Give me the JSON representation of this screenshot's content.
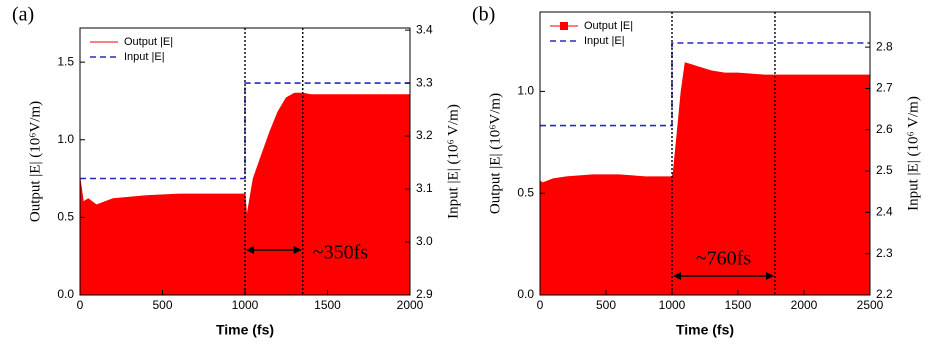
{
  "chart_data": [
    {
      "type": "line",
      "panel_label": "(a)",
      "xlabel": "Time (fs)",
      "ylabel": "Output |E| (10⁶V/m)",
      "y2label": "Input |E| (10⁶ V/m)",
      "xlim": [
        0,
        2000
      ],
      "xticks": [
        0,
        500,
        1000,
        1500,
        2000
      ],
      "ylim": [
        0,
        1.72
      ],
      "yticks": [
        {
          "value": 0,
          "label": "0.0"
        },
        0.5,
        {
          "value": 1,
          "label": "1.0"
        },
        1.5
      ],
      "y2lim": [
        2.9,
        3.404
      ],
      "y2ticks": [
        2.9,
        {
          "value": 3,
          "label": "3.0"
        },
        3.1,
        3.2,
        3.3,
        3.4
      ],
      "series": [
        {
          "name": "Output |E|",
          "color": "#ff0000",
          "kind": "area",
          "x": [
            0,
            20,
            50,
            100,
            200,
            400,
            600,
            800,
            1000,
            1010,
            1050,
            1100,
            1150,
            1200,
            1250,
            1300,
            1350,
            1400,
            1600,
            1800,
            2000
          ],
          "values": [
            0.75,
            0.6,
            0.62,
            0.58,
            0.62,
            0.64,
            0.65,
            0.65,
            0.65,
            0.5,
            0.75,
            0.9,
            1.05,
            1.18,
            1.27,
            1.3,
            1.3,
            1.29,
            1.29,
            1.29,
            1.29
          ]
        },
        {
          "name": "Input |E|",
          "color": "#2828c8",
          "kind": "dashed",
          "axis": "y2",
          "x": [
            0,
            1000,
            1000,
            2000
          ],
          "values": [
            3.12,
            3.12,
            3.3,
            3.3
          ]
        }
      ],
      "vlines": [
        1000,
        1350
      ],
      "annotation": "~350fs"
    },
    {
      "type": "line",
      "panel_label": "(b)",
      "xlabel": "Time (fs)",
      "ylabel": "Output |E| (10⁶V/m)",
      "y2label": "Input |E| (10⁶ V/m)",
      "xlim": [
        0,
        2500
      ],
      "xticks": [
        0,
        500,
        1000,
        1500,
        2000,
        2500
      ],
      "ylim": [
        0,
        1.39
      ],
      "yticks": [
        {
          "value": 0,
          "label": "0.0"
        },
        0.5,
        {
          "value": 1,
          "label": "1.0"
        }
      ],
      "y2lim": [
        2.2,
        2.885
      ],
      "y2ticks": [
        2.2,
        2.3,
        2.4,
        2.5,
        2.6,
        2.7,
        2.8
      ],
      "series": [
        {
          "name": "Output |E|",
          "color": "#ff0000",
          "kind": "area",
          "marker": "square",
          "x": [
            0,
            20,
            100,
            200,
            400,
            600,
            800,
            1000,
            1010,
            1040,
            1070,
            1100,
            1150,
            1200,
            1300,
            1400,
            1500,
            1700,
            2000,
            2500
          ],
          "values": [
            0.56,
            0.55,
            0.57,
            0.58,
            0.59,
            0.59,
            0.58,
            0.58,
            0.6,
            0.8,
            1.0,
            1.14,
            1.13,
            1.12,
            1.1,
            1.09,
            1.09,
            1.08,
            1.08,
            1.08
          ]
        },
        {
          "name": "Input |E|",
          "color": "#2828c8",
          "kind": "dashed",
          "axis": "y2",
          "x": [
            0,
            1000,
            1000,
            2500
          ],
          "values": [
            2.61,
            2.61,
            2.81,
            2.81
          ]
        }
      ],
      "vlines": [
        1000,
        1780
      ],
      "annotation": "~760fs"
    }
  ]
}
